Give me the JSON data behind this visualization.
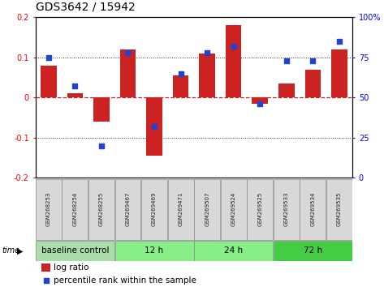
{
  "title": "GDS3642 / 15942",
  "samples": [
    "GSM268253",
    "GSM268254",
    "GSM268255",
    "GSM269467",
    "GSM269469",
    "GSM269471",
    "GSM269507",
    "GSM269524",
    "GSM269525",
    "GSM269533",
    "GSM269534",
    "GSM269535"
  ],
  "log_ratio": [
    0.08,
    0.01,
    -0.06,
    0.12,
    -0.145,
    0.055,
    0.11,
    0.18,
    -0.015,
    0.035,
    0.07,
    0.12
  ],
  "percentile": [
    75,
    57,
    20,
    78,
    32,
    65,
    78,
    82,
    46,
    73,
    73,
    85
  ],
  "group_labels": [
    "baseline control",
    "12 h",
    "24 h",
    "72 h"
  ],
  "group_starts": [
    0,
    3,
    6,
    9
  ],
  "group_ends": [
    3,
    6,
    9,
    12
  ],
  "group_colors": [
    "#aaddaa",
    "#88ee88",
    "#88ee88",
    "#44cc44"
  ],
  "ylim_left": [
    -0.2,
    0.2
  ],
  "ylim_right": [
    0,
    100
  ],
  "yticks_left": [
    -0.2,
    -0.1,
    0.0,
    0.1,
    0.2
  ],
  "yticks_right": [
    0,
    25,
    50,
    75,
    100
  ],
  "bar_color": "#cc2222",
  "dot_color": "#2244cc",
  "hline_color": "#cc2222",
  "dotted_color": "#333333",
  "bg_color": "#ffffff",
  "title_fontsize": 10,
  "tick_fontsize": 7,
  "sample_fontsize": 5,
  "group_fontsize": 7.5,
  "legend_fontsize": 7.5,
  "bar_width": 0.6
}
